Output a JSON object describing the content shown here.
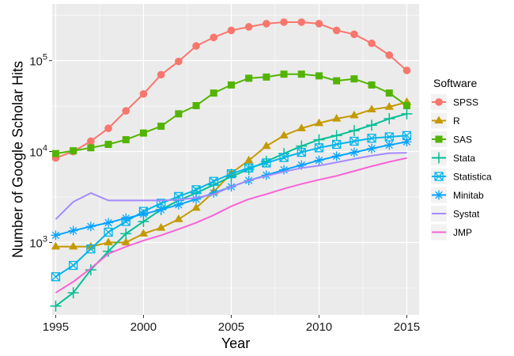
{
  "chart_data": {
    "type": "line",
    "title": "",
    "xlabel": "Year",
    "ylabel": "Number of Google Scholar Hits",
    "y_scale": "log",
    "xlim": [
      1994.8,
      2015.7
    ],
    "ylim": [
      160,
      420000
    ],
    "x_ticks": [
      1995,
      2000,
      2005,
      2010,
      2015
    ],
    "y_ticks": [
      {
        "value": 1000,
        "label_base": "10",
        "label_exp": "3"
      },
      {
        "value": 10000,
        "label_base": "10",
        "label_exp": "4"
      },
      {
        "value": 100000,
        "label_base": "10",
        "label_exp": "5"
      }
    ],
    "legend": {
      "title": "Software",
      "placement": "right"
    },
    "grid": true,
    "background": "#ebebeb",
    "x": [
      1995,
      1996,
      1997,
      1998,
      1999,
      2000,
      2001,
      2002,
      2003,
      2004,
      2005,
      2006,
      2007,
      2008,
      2009,
      2010,
      2011,
      2012,
      2013,
      2014,
      2015
    ],
    "series": [
      {
        "name": "SPSS",
        "color": "#F8766D",
        "marker": "circle",
        "values": [
          8500,
          10000,
          13000,
          18000,
          28000,
          43000,
          70000,
          98000,
          145000,
          180000,
          215000,
          235000,
          255000,
          265000,
          265000,
          255000,
          215000,
          195000,
          155000,
          115000,
          78000
        ]
      },
      {
        "name": "R",
        "color": "#C49A00",
        "marker": "triangle",
        "values": [
          900,
          900,
          900,
          1000,
          1000,
          1250,
          1450,
          1800,
          2400,
          3600,
          5800,
          8000,
          11500,
          15000,
          18000,
          20500,
          23000,
          25000,
          29000,
          31000,
          35000
        ]
      },
      {
        "name": "SAS",
        "color": "#53B400",
        "marker": "square",
        "values": [
          9500,
          10200,
          11000,
          12000,
          13500,
          16000,
          19000,
          26000,
          32000,
          44000,
          54000,
          64000,
          66000,
          71000,
          71000,
          68000,
          60000,
          63000,
          54000,
          44000,
          32000
        ]
      },
      {
        "name": "Stata",
        "color": "#00C094",
        "marker": "plus",
        "values": [
          200,
          280,
          500,
          800,
          1250,
          1700,
          2300,
          2900,
          3500,
          4300,
          5300,
          6400,
          7800,
          9500,
          11500,
          13500,
          15000,
          17000,
          19500,
          23000,
          26000
        ]
      },
      {
        "name": "Statistica",
        "color": "#00B6EB",
        "marker": "square-x",
        "values": [
          420,
          560,
          850,
          1300,
          1700,
          2200,
          2700,
          3200,
          3800,
          4700,
          5700,
          6600,
          7500,
          8600,
          9800,
          11000,
          12000,
          13000,
          14000,
          14500,
          15000
        ]
      },
      {
        "name": "Minitab",
        "color": "#06A4FF",
        "marker": "asterisk",
        "values": [
          1200,
          1350,
          1500,
          1650,
          1850,
          2050,
          2300,
          2600,
          3000,
          3500,
          4100,
          4800,
          5500,
          6300,
          7100,
          8000,
          8900,
          9800,
          10800,
          11800,
          12800
        ]
      },
      {
        "name": "Systat",
        "color": "#A58AFF",
        "marker": "none",
        "values": [
          1800,
          2800,
          3500,
          2900,
          2900,
          2900,
          2900,
          2950,
          3100,
          3400,
          4100,
          4800,
          5400,
          6000,
          6600,
          7000,
          7600,
          8300,
          9000,
          9600,
          9700
        ]
      },
      {
        "name": "JMP",
        "color": "#FB61D7",
        "marker": "none",
        "values": [
          280,
          370,
          520,
          750,
          900,
          1050,
          1200,
          1400,
          1650,
          2000,
          2500,
          3000,
          3400,
          3900,
          4400,
          4900,
          5400,
          6100,
          6900,
          7700,
          8500
        ]
      }
    ]
  }
}
